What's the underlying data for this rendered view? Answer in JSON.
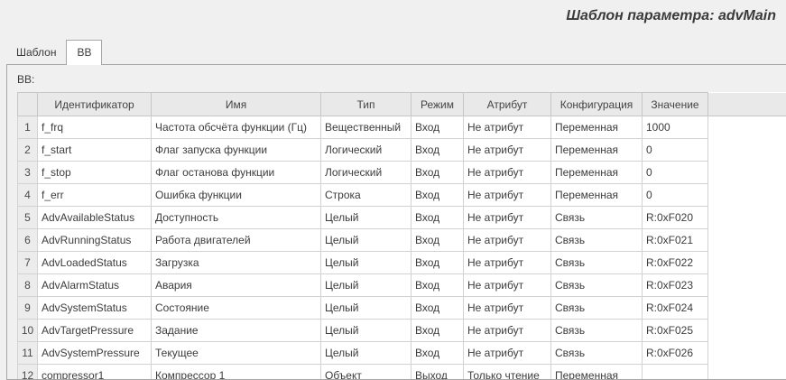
{
  "window": {
    "title": "Шаблон параметра: advMain"
  },
  "tabs": [
    {
      "label": "Шаблон",
      "active": false
    },
    {
      "label": "ВВ",
      "active": true
    }
  ],
  "panel": {
    "label": "ВВ:"
  },
  "colors": {
    "background": "#f0f0f0",
    "header_bg": "#e9e9e9",
    "grid": "#d2d2d2",
    "pane_border": "#a6a6a6"
  },
  "table": {
    "columns": {
      "corner": "",
      "identifier": "Идентификатор",
      "name": "Имя",
      "type": "Тип",
      "mode": "Режим",
      "attribute": "Атрибут",
      "configuration": "Конфигурация",
      "value": "Значение"
    },
    "rows": [
      {
        "num": "1",
        "id": "f_frq",
        "name": "Частота обсчёта функции (Гц)",
        "type": "Вещественный",
        "mode": "Вход",
        "attr": "Не атрибут",
        "config": "Переменная",
        "value": "1000"
      },
      {
        "num": "2",
        "id": "f_start",
        "name": "Флаг запуска функции",
        "type": "Логический",
        "mode": "Вход",
        "attr": "Не атрибут",
        "config": "Переменная",
        "value": "0"
      },
      {
        "num": "3",
        "id": "f_stop",
        "name": "Флаг останова функции",
        "type": "Логический",
        "mode": "Вход",
        "attr": "Не атрибут",
        "config": "Переменная",
        "value": "0"
      },
      {
        "num": "4",
        "id": "f_err",
        "name": "Ошибка функции",
        "type": "Строка",
        "mode": "Вход",
        "attr": "Не атрибут",
        "config": "Переменная",
        "value": "0"
      },
      {
        "num": "5",
        "id": "AdvAvailableStatus",
        "name": "Доступность",
        "type": "Целый",
        "mode": "Вход",
        "attr": "Не атрибут",
        "config": "Связь",
        "value": "R:0xF020"
      },
      {
        "num": "6",
        "id": "AdvRunningStatus",
        "name": "Работа двигателей",
        "type": "Целый",
        "mode": "Вход",
        "attr": "Не атрибут",
        "config": "Связь",
        "value": "R:0xF021"
      },
      {
        "num": "7",
        "id": "AdvLoadedStatus",
        "name": "Загрузка",
        "type": "Целый",
        "mode": "Вход",
        "attr": "Не атрибут",
        "config": "Связь",
        "value": "R:0xF022"
      },
      {
        "num": "8",
        "id": "AdvAlarmStatus",
        "name": "Авария",
        "type": "Целый",
        "mode": "Вход",
        "attr": "Не атрибут",
        "config": "Связь",
        "value": "R:0xF023"
      },
      {
        "num": "9",
        "id": "AdvSystemStatus",
        "name": "Состояние",
        "type": "Целый",
        "mode": "Вход",
        "attr": "Не атрибут",
        "config": "Связь",
        "value": "R:0xF024"
      },
      {
        "num": "10",
        "id": "AdvTargetPressure",
        "name": "Задание",
        "type": "Целый",
        "mode": "Вход",
        "attr": "Не атрибут",
        "config": "Связь",
        "value": "R:0xF025"
      },
      {
        "num": "11",
        "id": "AdvSystemPressure",
        "name": "Текущее",
        "type": "Целый",
        "mode": "Вход",
        "attr": "Не атрибут",
        "config": "Связь",
        "value": "R:0xF026"
      },
      {
        "num": "12",
        "id": "compressor1",
        "name": "Компрессор 1",
        "type": "Объект",
        "mode": "Выход",
        "attr": "Только чтение",
        "config": "Переменная",
        "value": ""
      }
    ]
  }
}
